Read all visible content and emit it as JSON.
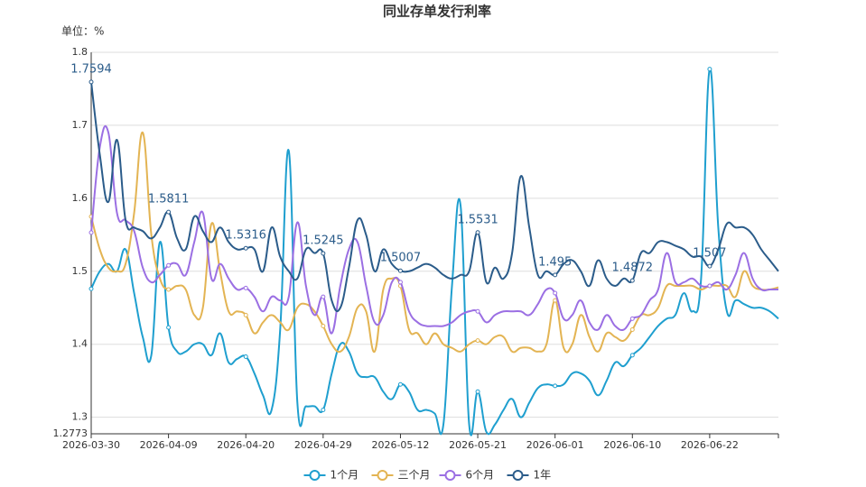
{
  "chart_data": {
    "type": "line",
    "title": "同业存单发行利率",
    "unit_label": "单位：%",
    "categories": [
      "2026-03-30",
      null,
      null,
      null,
      null,
      null,
      null,
      null,
      null,
      "2026-04-09",
      null,
      null,
      null,
      null,
      null,
      null,
      null,
      null,
      "2026-04-20",
      null,
      null,
      null,
      null,
      null,
      null,
      null,
      null,
      "2026-04-29",
      null,
      null,
      null,
      null,
      null,
      null,
      null,
      null,
      "2026-05-12",
      null,
      null,
      null,
      null,
      null,
      null,
      null,
      null,
      "2026-05-21",
      null,
      null,
      null,
      null,
      null,
      null,
      null,
      null,
      "2026-06-01",
      null,
      null,
      null,
      null,
      null,
      null,
      null,
      null,
      "2026-06-10",
      null,
      null,
      null,
      null,
      null,
      null,
      null,
      null,
      "2026-06-22",
      null,
      null,
      null,
      null,
      null,
      null,
      null,
      null
    ],
    "series": [
      {
        "name": "1个月",
        "color": "#1f9fcf",
        "values": [
          1.476,
          1.5,
          1.51,
          1.5,
          1.53,
          1.47,
          1.41,
          1.385,
          1.54,
          1.423,
          1.39,
          1.39,
          1.4,
          1.4,
          1.385,
          1.415,
          1.375,
          1.38,
          1.383,
          1.36,
          1.33,
          1.31,
          1.42,
          1.665,
          1.32,
          1.315,
          1.315,
          1.31,
          1.36,
          1.4,
          1.39,
          1.36,
          1.355,
          1.355,
          1.335,
          1.325,
          1.345,
          1.335,
          1.31,
          1.31,
          1.305,
          1.29,
          1.48,
          1.59,
          1.29,
          1.335,
          1.28,
          1.29,
          1.31,
          1.325,
          1.3,
          1.32,
          1.34,
          1.345,
          1.343,
          1.345,
          1.36,
          1.36,
          1.35,
          1.33,
          1.35,
          1.375,
          1.37,
          1.385,
          1.395,
          1.41,
          1.425,
          1.435,
          1.44,
          1.47,
          1.445,
          1.49,
          1.777,
          1.56,
          1.445,
          1.46,
          1.455,
          1.45,
          1.45,
          1.445,
          1.435
        ]
      },
      {
        "name": "三个月",
        "color": "#e3b453",
        "values": [
          1.575,
          1.53,
          1.505,
          1.5,
          1.51,
          1.58,
          1.69,
          1.55,
          1.49,
          1.475,
          1.48,
          1.475,
          1.44,
          1.45,
          1.565,
          1.5,
          1.445,
          1.445,
          1.44,
          1.415,
          1.43,
          1.44,
          1.43,
          1.42,
          1.45,
          1.455,
          1.445,
          1.425,
          1.4,
          1.39,
          1.41,
          1.45,
          1.445,
          1.39,
          1.475,
          1.49,
          1.48,
          1.42,
          1.415,
          1.4,
          1.415,
          1.4,
          1.395,
          1.39,
          1.4,
          1.405,
          1.4,
          1.41,
          1.41,
          1.39,
          1.395,
          1.395,
          1.39,
          1.4,
          1.46,
          1.395,
          1.4,
          1.44,
          1.41,
          1.39,
          1.415,
          1.41,
          1.405,
          1.42,
          1.44,
          1.44,
          1.45,
          1.48,
          1.48,
          1.48,
          1.48,
          1.475,
          1.48,
          1.48,
          1.48,
          1.465,
          1.5,
          1.48,
          1.475,
          1.475,
          1.478
        ]
      },
      {
        "name": "6个月",
        "color": "#9b6fe3",
        "values": [
          1.553,
          1.67,
          1.69,
          1.58,
          1.57,
          1.555,
          1.505,
          1.485,
          1.495,
          1.508,
          1.51,
          1.495,
          1.54,
          1.58,
          1.49,
          1.51,
          1.49,
          1.475,
          1.477,
          1.465,
          1.445,
          1.465,
          1.46,
          1.465,
          1.567,
          1.48,
          1.44,
          1.465,
          1.415,
          1.48,
          1.53,
          1.54,
          1.48,
          1.43,
          1.44,
          1.485,
          1.485,
          1.445,
          1.43,
          1.425,
          1.425,
          1.425,
          1.43,
          1.44,
          1.445,
          1.445,
          1.43,
          1.44,
          1.445,
          1.445,
          1.445,
          1.44,
          1.455,
          1.475,
          1.47,
          1.435,
          1.44,
          1.46,
          1.43,
          1.42,
          1.44,
          1.425,
          1.42,
          1.435,
          1.44,
          1.46,
          1.475,
          1.525,
          1.485,
          1.485,
          1.49,
          1.48,
          1.48,
          1.485,
          1.475,
          1.495,
          1.525,
          1.49,
          1.475,
          1.475,
          1.475
        ]
      },
      {
        "name": "1年",
        "color": "#2b5c8a",
        "values": [
          1.7594,
          1.66,
          1.595,
          1.68,
          1.57,
          1.56,
          1.555,
          1.545,
          1.56,
          1.5811,
          1.545,
          1.53,
          1.575,
          1.555,
          1.54,
          1.56,
          1.54,
          1.53,
          1.5316,
          1.53,
          1.5,
          1.56,
          1.52,
          1.5,
          1.49,
          1.53,
          1.525,
          1.5245,
          1.46,
          1.45,
          1.505,
          1.57,
          1.55,
          1.5,
          1.53,
          1.51,
          1.5007,
          1.5,
          1.505,
          1.51,
          1.505,
          1.495,
          1.49,
          1.495,
          1.5,
          1.5531,
          1.485,
          1.505,
          1.49,
          1.525,
          1.63,
          1.56,
          1.495,
          1.5,
          1.495,
          1.51,
          1.515,
          1.5,
          1.48,
          1.515,
          1.49,
          1.48,
          1.49,
          1.4872,
          1.525,
          1.525,
          1.54,
          1.54,
          1.535,
          1.53,
          1.52,
          1.52,
          1.507,
          1.53,
          1.565,
          1.56,
          1.56,
          1.55,
          1.53,
          1.515,
          1.5
        ],
        "value_labels": [
          "1.7594",
          null,
          null,
          null,
          null,
          null,
          null,
          null,
          null,
          "1.5811",
          null,
          null,
          null,
          null,
          null,
          null,
          null,
          null,
          "1.5316",
          null,
          null,
          null,
          null,
          null,
          null,
          null,
          null,
          "1.5245",
          null,
          null,
          null,
          null,
          null,
          null,
          null,
          null,
          "1.5007",
          null,
          null,
          null,
          null,
          null,
          null,
          null,
          null,
          "1.5531",
          null,
          null,
          null,
          null,
          null,
          null,
          null,
          null,
          "1.495",
          null,
          null,
          null,
          null,
          null,
          null,
          null,
          null,
          "1.4872",
          null,
          null,
          null,
          null,
          null,
          null,
          null,
          null,
          "1.507",
          null,
          null,
          null,
          null,
          null,
          null,
          null,
          null
        ]
      }
    ],
    "ylim": [
      1.2773,
      1.8
    ],
    "yticks": [
      1.2773,
      1.3,
      1.4,
      1.5,
      1.6,
      1.7,
      1.8
    ],
    "grid": true,
    "legend": "bottom"
  }
}
